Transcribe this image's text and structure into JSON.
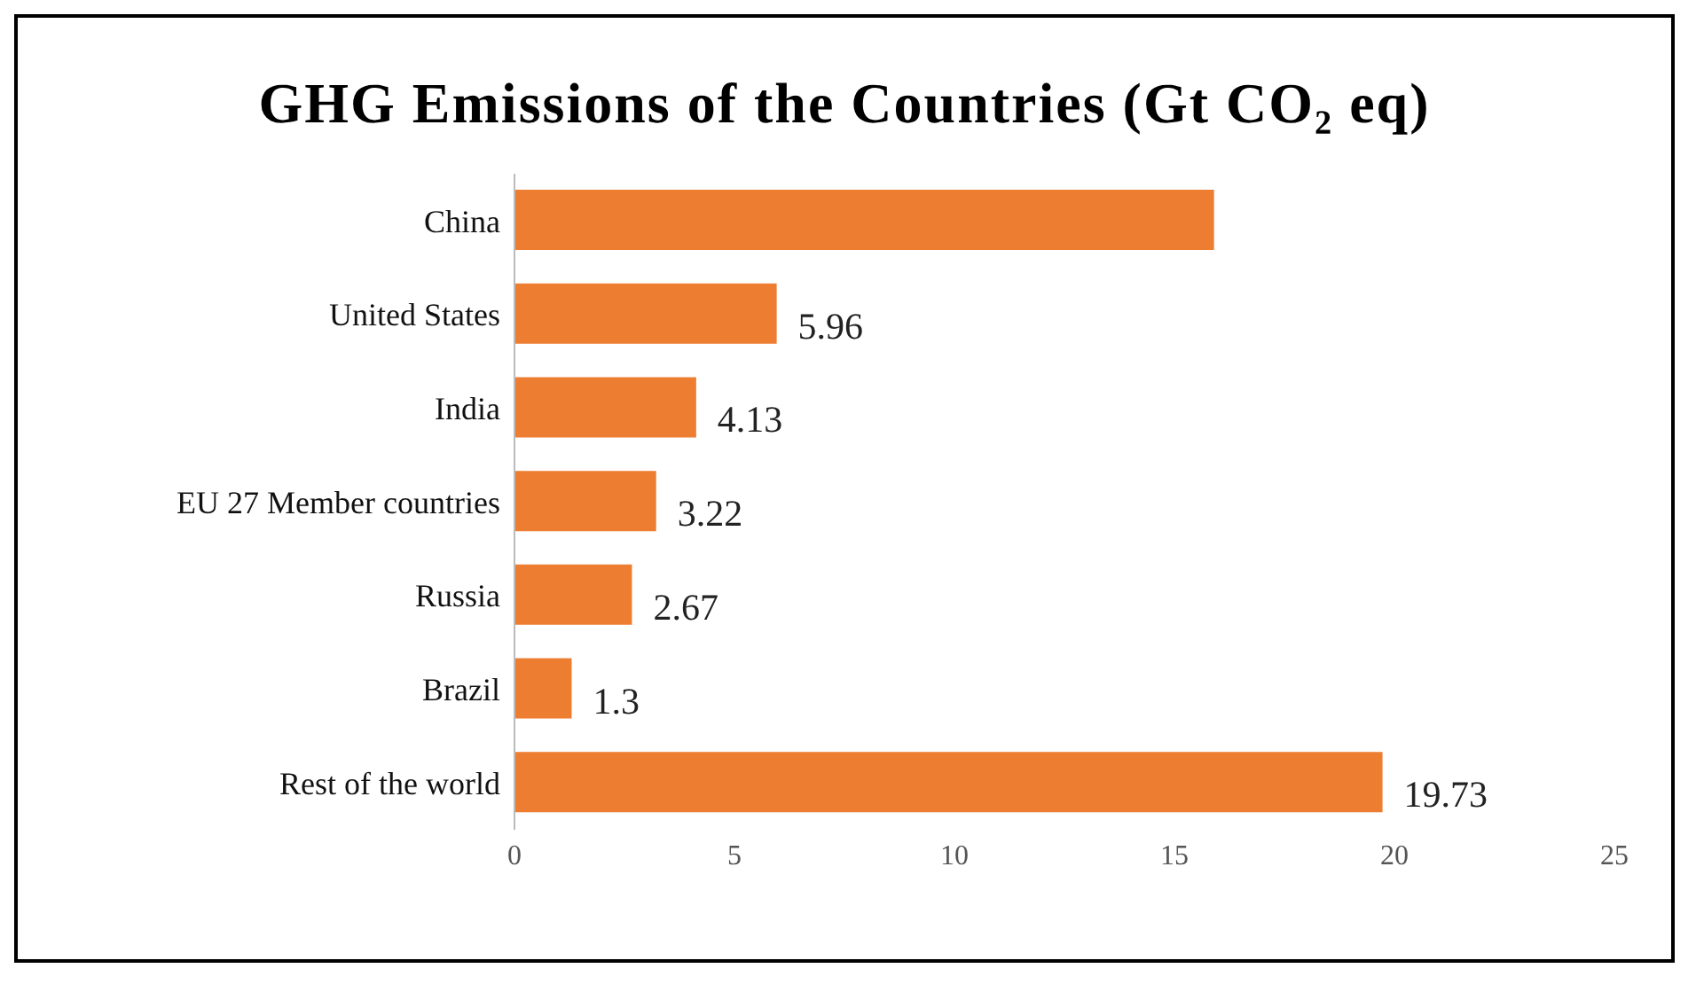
{
  "chart_data": {
    "type": "bar",
    "orientation": "horizontal",
    "title": "GHG Emissions of the Countries (Gt CO₂ eq)",
    "categories": [
      "China",
      "United States",
      "India",
      "EU 27 Member countries",
      "Russia",
      "Brazil",
      "Rest of the world"
    ],
    "values": [
      15.9,
      5.96,
      4.13,
      3.22,
      2.67,
      1.3,
      19.73
    ],
    "value_labels": [
      null,
      "5.96",
      "4.13",
      "3.22",
      "2.67",
      "1.3",
      "19.73"
    ],
    "color": "#ed7d31",
    "xlim": [
      0,
      25
    ],
    "xticks": [
      0,
      5,
      10,
      15,
      20,
      25
    ],
    "grid": false,
    "legend": false
  }
}
